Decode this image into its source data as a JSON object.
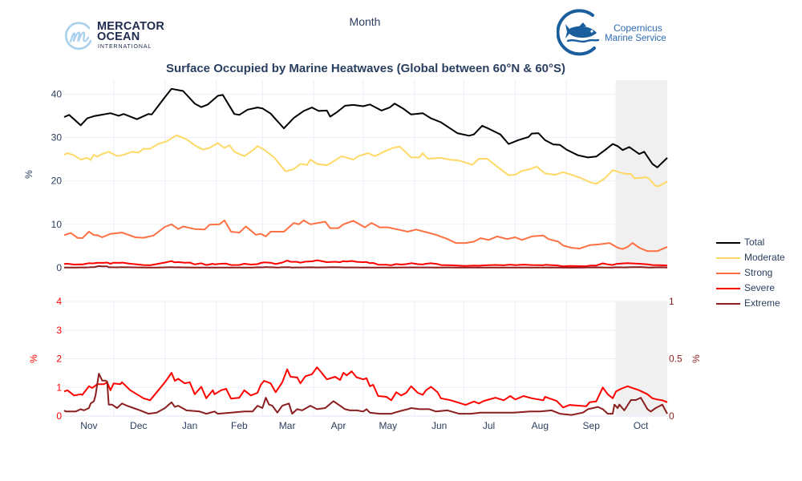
{
  "logos": {
    "mercator": {
      "line1": "MERCATOR",
      "line2": "OCEAN",
      "line3": "INTERNATIONAL",
      "accent": "#a9d0ec",
      "text_color": "#1e2a4e"
    },
    "copernicus": {
      "line1": "Copernicus",
      "line2": "Marine Service",
      "color": "#1b5e9e"
    }
  },
  "chart_data": {
    "type": "line",
    "title": "Surface Occupied by Marine Heatwaves (Global between 60°N & 60°S)",
    "xlabel": "Month",
    "x_unit": "days since 1 Nov",
    "xlim": [
      0,
      365
    ],
    "month_starts": [
      30,
      61,
      92,
      120,
      151,
      181,
      212,
      242,
      273,
      304,
      334
    ],
    "x_ticks": [
      {
        "x": 15,
        "label": "Nov"
      },
      {
        "x": 45,
        "label": "Dec"
      },
      {
        "x": 76,
        "label": "Jan"
      },
      {
        "x": 106,
        "label": "Feb"
      },
      {
        "x": 135,
        "label": "Mar"
      },
      {
        "x": 166,
        "label": "Apr"
      },
      {
        "x": 196,
        "label": "May"
      },
      {
        "x": 227,
        "label": "Jun"
      },
      {
        "x": 257,
        "label": "Jul"
      },
      {
        "x": 288,
        "label": "Aug"
      },
      {
        "x": 319,
        "label": "Sep"
      },
      {
        "x": 349,
        "label": "Oct"
      }
    ],
    "shaded_region": {
      "x": [
        334,
        365
      ],
      "color": "#f0f0f0"
    },
    "grid": true,
    "legend": {
      "placement": "right"
    },
    "series": [
      {
        "name": "Total",
        "color": "#000000",
        "x": [
          0,
          3,
          10,
          14,
          18,
          28,
          33,
          36,
          44,
          51,
          53,
          61,
          65,
          72,
          79,
          83,
          87,
          93,
          96,
          103,
          106,
          111,
          117,
          120,
          125,
          128,
          133,
          139,
          145,
          150,
          154,
          159,
          161,
          165,
          170,
          175,
          181,
          185,
          192,
          197,
          200,
          205,
          210,
          217,
          222,
          228,
          238,
          245,
          248,
          253,
          257,
          264,
          269,
          275,
          281,
          283,
          287,
          291,
          296,
          300,
          304,
          311,
          317,
          322,
          327,
          332,
          335,
          338,
          342,
          348,
          351,
          356,
          359,
          365
        ],
        "y": [
          34.7,
          35.2,
          32.8,
          34.4,
          34.9,
          35.6,
          35.0,
          35.4,
          34.2,
          35.4,
          35.3,
          39.3,
          41.2,
          40.7,
          37.8,
          37.0,
          37.6,
          39.6,
          39.8,
          35.4,
          35.2,
          36.4,
          36.9,
          36.7,
          35.5,
          34.2,
          32.1,
          34.5,
          36.1,
          36.9,
          36.1,
          36.2,
          34.8,
          35.8,
          37.3,
          37.5,
          37.2,
          37.6,
          36.2,
          36.9,
          37.8,
          36.7,
          35.3,
          35.6,
          34.4,
          33.5,
          31.0,
          30.4,
          30.7,
          32.7,
          32.0,
          30.7,
          28.5,
          29.4,
          30.1,
          30.9,
          31.0,
          29.4,
          28.4,
          28.3,
          27.2,
          25.9,
          25.4,
          25.6,
          27.0,
          28.5,
          28.0,
          27.1,
          27.8,
          26.2,
          26.7,
          23.9,
          23.1,
          25.3
        ]
      },
      {
        "name": "Moderate",
        "color": "#ffd966",
        "x": [
          0,
          2,
          6,
          10,
          14,
          16,
          18,
          20,
          23,
          27,
          32,
          36,
          41,
          45,
          48,
          52,
          57,
          62,
          68,
          74,
          79,
          84,
          88,
          93,
          97,
          100,
          103,
          109,
          114,
          117,
          121,
          127,
          134,
          139,
          143,
          147,
          149,
          153,
          159,
          163,
          168,
          175,
          178,
          184,
          188,
          194,
          199,
          203,
          210,
          215,
          217,
          220,
          228,
          233,
          239,
          247,
          251,
          256,
          262,
          269,
          273,
          277,
          282,
          286,
          291,
          297,
          302,
          307,
          313,
          319,
          322,
          327,
          332,
          336,
          340,
          343,
          345,
          350,
          352,
          354,
          358,
          360,
          365
        ],
        "y": [
          26.0,
          26.4,
          25.9,
          24.9,
          25.3,
          24.8,
          26.0,
          25.6,
          26.2,
          26.7,
          25.7,
          26.0,
          26.7,
          26.5,
          27.4,
          27.4,
          28.5,
          29.1,
          30.5,
          29.6,
          28.2,
          27.2,
          27.6,
          28.7,
          27.6,
          28.2,
          26.7,
          25.7,
          27.0,
          28.0,
          27.2,
          25.4,
          22.2,
          22.7,
          23.9,
          23.7,
          24.9,
          23.9,
          23.6,
          24.5,
          25.7,
          24.9,
          25.7,
          26.4,
          25.7,
          26.8,
          27.6,
          27.9,
          25.4,
          25.4,
          26.4,
          25.1,
          25.3,
          24.9,
          24.7,
          23.7,
          25.1,
          25.1,
          23.3,
          21.3,
          21.4,
          22.3,
          22.7,
          23.3,
          21.7,
          21.4,
          22.0,
          21.4,
          20.6,
          19.6,
          19.3,
          20.5,
          22.5,
          22.0,
          21.6,
          21.6,
          20.6,
          20.7,
          20.9,
          20.5,
          18.8,
          18.8,
          19.9
        ]
      },
      {
        "name": "Strong",
        "color": "#ff7043",
        "x": [
          0,
          4,
          8,
          11,
          15,
          18,
          20,
          23,
          28,
          35,
          43,
          48,
          54,
          61,
          65,
          69,
          72,
          79,
          85,
          88,
          94,
          97,
          101,
          106,
          110,
          116,
          119,
          122,
          125,
          133,
          139,
          142,
          145,
          149,
          158,
          161,
          166,
          169,
          175,
          182,
          186,
          191,
          196,
          202,
          208,
          213,
          218,
          225,
          232,
          237,
          243,
          248,
          252,
          257,
          262,
          268,
          273,
          277,
          283,
          290,
          293,
          299,
          302,
          307,
          312,
          318,
          324,
          330,
          335,
          338,
          341,
          344,
          348,
          353,
          359,
          365
        ],
        "y": [
          7.5,
          8.0,
          6.9,
          6.8,
          8.3,
          7.5,
          7.5,
          7.0,
          7.8,
          8.1,
          7.0,
          6.9,
          7.4,
          9.4,
          10.0,
          8.9,
          9.5,
          8.9,
          8.8,
          9.9,
          10.0,
          10.9,
          8.3,
          8.1,
          9.5,
          7.6,
          7.8,
          7.2,
          8.3,
          8.3,
          10.3,
          10.0,
          10.9,
          10.0,
          10.6,
          9.1,
          9.1,
          10.0,
          10.8,
          9.3,
          10.3,
          9.3,
          9.3,
          8.8,
          8.3,
          8.8,
          8.3,
          7.6,
          6.6,
          5.7,
          5.7,
          6.0,
          6.8,
          6.4,
          7.2,
          6.6,
          7.0,
          6.4,
          7.2,
          7.4,
          6.6,
          6.0,
          5.1,
          4.6,
          4.4,
          5.2,
          5.4,
          5.7,
          4.6,
          4.3,
          4.8,
          5.7,
          4.6,
          3.8,
          3.8,
          4.8
        ]
      },
      {
        "name": "Severe",
        "color": "#ff0000",
        "x": [
          0,
          2,
          6,
          10,
          11,
          15,
          17,
          20,
          24,
          26,
          28,
          30,
          34,
          35,
          40,
          44,
          48,
          52,
          56,
          61,
          65,
          67,
          69,
          73,
          76,
          79,
          83,
          86,
          90,
          91,
          95,
          98,
          101,
          106,
          109,
          113,
          117,
          119,
          121,
          125,
          128,
          132,
          135,
          137,
          141,
          143,
          146,
          150,
          153,
          155,
          159,
          164,
          167,
          169,
          171,
          174,
          177,
          181,
          183,
          185,
          187,
          190,
          195,
          198,
          201,
          204,
          207,
          210,
          214,
          217,
          219,
          222,
          226,
          228,
          234,
          243,
          248,
          251,
          254,
          261,
          266,
          270,
          273,
          278,
          283,
          290,
          291,
          294,
          298,
          302,
          306,
          312,
          316,
          318,
          322,
          326,
          329,
          332,
          334,
          337,
          341,
          343,
          348,
          353,
          356,
          359,
          362,
          365
        ],
        "y": [
          0.86,
          0.9,
          0.72,
          0.76,
          0.74,
          1.04,
          0.98,
          1.11,
          1.11,
          1.18,
          0.9,
          1.14,
          1.11,
          1.18,
          0.9,
          0.76,
          0.62,
          0.55,
          0.83,
          1.18,
          1.51,
          1.23,
          1.3,
          1.14,
          1.18,
          0.76,
          1.02,
          0.62,
          0.9,
          0.76,
          0.9,
          0.95,
          0.61,
          0.64,
          0.9,
          0.72,
          0.81,
          1.09,
          1.23,
          1.14,
          0.83,
          1.18,
          1.63,
          1.37,
          1.35,
          1.14,
          1.39,
          1.46,
          1.7,
          1.57,
          1.28,
          1.37,
          1.26,
          1.51,
          1.42,
          1.56,
          1.35,
          1.28,
          1.32,
          1.04,
          1.09,
          0.7,
          0.67,
          0.55,
          0.83,
          0.72,
          0.81,
          1.04,
          0.81,
          0.74,
          0.9,
          1.02,
          0.83,
          0.62,
          0.55,
          0.39,
          0.51,
          0.44,
          0.53,
          0.64,
          0.55,
          0.7,
          0.58,
          0.7,
          0.62,
          0.55,
          0.67,
          0.61,
          0.53,
          0.3,
          0.39,
          0.36,
          0.34,
          0.48,
          0.51,
          1.0,
          0.76,
          0.62,
          0.86,
          0.95,
          1.04,
          1.0,
          0.9,
          0.76,
          0.62,
          0.58,
          0.55,
          0.48
        ]
      },
      {
        "name": "Extreme",
        "color": "#8b1e1e",
        "x": [
          0,
          1,
          7,
          10,
          12,
          15,
          16,
          18,
          19,
          21,
          23,
          25,
          26,
          27,
          29,
          32,
          35,
          38,
          42,
          46,
          51,
          56,
          61,
          65,
          67,
          69,
          74,
          82,
          86,
          91,
          93,
          101,
          109,
          114,
          117,
          120,
          122,
          124,
          126,
          129,
          132,
          136,
          138,
          141,
          144,
          149,
          153,
          158,
          163,
          166,
          170,
          173,
          177,
          181,
          183,
          185,
          191,
          198,
          200,
          205,
          208,
          210,
          215,
          221,
          225,
          232,
          239,
          246,
          252,
          264,
          272,
          282,
          288,
          295,
          300,
          307,
          314,
          317,
          323,
          326,
          329,
          332,
          333,
          335,
          336,
          339,
          343,
          346,
          349,
          353,
          355,
          358,
          362,
          365
        ],
        "y": [
          0.05,
          0.04,
          0.04,
          0.06,
          0.05,
          0.07,
          0.11,
          0.13,
          0.18,
          0.37,
          0.31,
          0.31,
          0.3,
          0.1,
          0.1,
          0.07,
          0.11,
          0.09,
          0.07,
          0.05,
          0.02,
          0.03,
          0.07,
          0.12,
          0.08,
          0.09,
          0.05,
          0.04,
          0.02,
          0.04,
          0.02,
          0.03,
          0.04,
          0.04,
          0.09,
          0.07,
          0.16,
          0.1,
          0.09,
          0.03,
          0.09,
          0.11,
          0.02,
          0.06,
          0.05,
          0.09,
          0.06,
          0.07,
          0.13,
          0.1,
          0.06,
          0.05,
          0.05,
          0.04,
          0.06,
          0.03,
          0.02,
          0.02,
          0.03,
          0.05,
          0.06,
          0.07,
          0.06,
          0.06,
          0.04,
          0.05,
          0.02,
          0.02,
          0.03,
          0.03,
          0.03,
          0.04,
          0.04,
          0.05,
          0.02,
          0.01,
          0.03,
          0.06,
          0.08,
          0.06,
          0.02,
          0.02,
          0.1,
          0.07,
          0.1,
          0.05,
          0.14,
          0.14,
          0.16,
          0.06,
          0.04,
          0.07,
          0.1,
          0.02
        ]
      }
    ],
    "panels": [
      {
        "name": "all-categories",
        "y_left": {
          "title": "%",
          "range": [
            -0.2,
            43.2
          ],
          "ticks": [
            0,
            10,
            20,
            30,
            40
          ],
          "tick_labels": [
            "0",
            "10",
            "20",
            "30",
            "40"
          ],
          "color": "#2a3f5f"
        },
        "series_left": [
          "Total",
          "Moderate",
          "Strong",
          "Severe",
          "Extreme"
        ]
      },
      {
        "name": "severe-extreme",
        "y_left": {
          "title": "%",
          "range": [
            0,
            4
          ],
          "ticks": [
            0,
            1,
            2,
            3,
            4
          ],
          "tick_labels": [
            "0",
            "1",
            "2",
            "3",
            "4"
          ],
          "color": "#ff0000"
        },
        "y_right": {
          "title": "%",
          "range": [
            0,
            1
          ],
          "ticks": [
            0,
            0.5,
            1
          ],
          "tick_labels": [
            "0",
            "0.5",
            "1"
          ],
          "color": "#8b1e1e"
        },
        "series_left": [
          "Severe"
        ],
        "series_right": [
          "Extreme"
        ]
      }
    ]
  }
}
